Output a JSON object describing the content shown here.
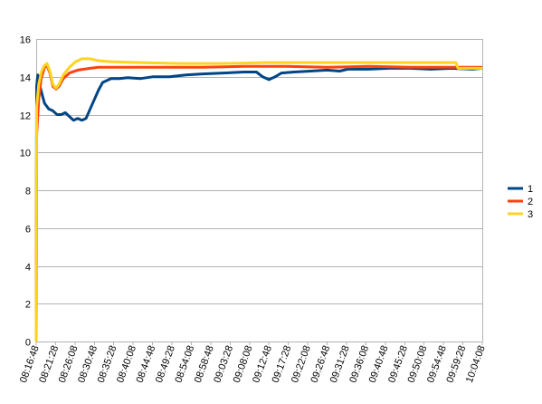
{
  "chart_data": {
    "type": "line",
    "title": "",
    "xlabel": "",
    "ylabel": "",
    "ylim": [
      0,
      16
    ],
    "yticks": [
      "0",
      "2",
      "4",
      "6",
      "8",
      "10",
      "12",
      "14",
      "16"
    ],
    "grid": true,
    "legend_position": "right",
    "x_tick_labels": [
      "08:16:48",
      "08:21:28",
      "08:26:08",
      "08:30:48",
      "08:35:28",
      "08:40:08",
      "08:44:48",
      "08:49:28",
      "08:54:08",
      "08:58:48",
      "09:03:28",
      "09:08:08",
      "09:12:48",
      "09:17:28",
      "09:22:08",
      "09:26:48",
      "09:31:28",
      "09:36:08",
      "09:40:48",
      "09:45:28",
      "09:50:08",
      "09:54:48",
      "09:59:28",
      "10:04:08"
    ],
    "x_range_minutes": [
      0,
      107.33
    ],
    "series": [
      {
        "name": "1",
        "color": "#004586",
        "points": [
          [
            0,
            0
          ],
          [
            0.1,
            13.5
          ],
          [
            0.4,
            14.1
          ],
          [
            0.8,
            13.6
          ],
          [
            1.5,
            13.0
          ],
          [
            2.0,
            12.6
          ],
          [
            3.0,
            12.3
          ],
          [
            4.0,
            12.2
          ],
          [
            5.0,
            12.0
          ],
          [
            6.0,
            12.0
          ],
          [
            7.0,
            12.1
          ],
          [
            8.0,
            11.9
          ],
          [
            9.0,
            11.7
          ],
          [
            10.0,
            11.8
          ],
          [
            11.0,
            11.7
          ],
          [
            12.0,
            11.8
          ],
          [
            13.0,
            12.3
          ],
          [
            14.0,
            12.8
          ],
          [
            15.0,
            13.3
          ],
          [
            16.0,
            13.7
          ],
          [
            17.0,
            13.8
          ],
          [
            18.0,
            13.9
          ],
          [
            20.0,
            13.9
          ],
          [
            22.0,
            13.95
          ],
          [
            25.0,
            13.9
          ],
          [
            28.0,
            14.0
          ],
          [
            32.0,
            14.0
          ],
          [
            36.0,
            14.1
          ],
          [
            40.0,
            14.15
          ],
          [
            45.0,
            14.2
          ],
          [
            50.0,
            14.25
          ],
          [
            53.0,
            14.25
          ],
          [
            54.5,
            14.0
          ],
          [
            56.0,
            13.85
          ],
          [
            57.5,
            14.0
          ],
          [
            59.0,
            14.2
          ],
          [
            62.0,
            14.25
          ],
          [
            66.0,
            14.3
          ],
          [
            70.0,
            14.35
          ],
          [
            73.0,
            14.3
          ],
          [
            75.0,
            14.4
          ],
          [
            80.0,
            14.4
          ],
          [
            85.0,
            14.45
          ],
          [
            90.0,
            14.45
          ],
          [
            95.0,
            14.4
          ],
          [
            100.0,
            14.45
          ],
          [
            105.0,
            14.4
          ],
          [
            107.33,
            14.45
          ]
        ]
      },
      {
        "name": "2",
        "color": "#ff420e",
        "points": [
          [
            0,
            0
          ],
          [
            0.1,
            10.9
          ],
          [
            0.6,
            12.8
          ],
          [
            1.2,
            13.9
          ],
          [
            2.0,
            14.5
          ],
          [
            2.6,
            14.6
          ],
          [
            3.3,
            14.2
          ],
          [
            4.0,
            13.5
          ],
          [
            4.8,
            13.35
          ],
          [
            5.5,
            13.5
          ],
          [
            6.5,
            13.9
          ],
          [
            8.0,
            14.2
          ],
          [
            10.0,
            14.35
          ],
          [
            13.0,
            14.45
          ],
          [
            15.0,
            14.5
          ],
          [
            20.0,
            14.5
          ],
          [
            30.0,
            14.5
          ],
          [
            40.0,
            14.5
          ],
          [
            50.0,
            14.55
          ],
          [
            60.0,
            14.55
          ],
          [
            70.0,
            14.5
          ],
          [
            80.0,
            14.55
          ],
          [
            90.0,
            14.5
          ],
          [
            100.0,
            14.5
          ],
          [
            107.33,
            14.5
          ]
        ]
      },
      {
        "name": "3",
        "color": "#ffd320",
        "points": [
          [
            0,
            0
          ],
          [
            0.1,
            12.4
          ],
          [
            0.6,
            13.6
          ],
          [
            1.3,
            14.3
          ],
          [
            2.0,
            14.6
          ],
          [
            2.6,
            14.7
          ],
          [
            3.3,
            14.3
          ],
          [
            4.0,
            13.6
          ],
          [
            4.8,
            13.4
          ],
          [
            5.5,
            13.6
          ],
          [
            6.5,
            14.1
          ],
          [
            8.0,
            14.5
          ],
          [
            9.5,
            14.8
          ],
          [
            11.0,
            14.95
          ],
          [
            13.0,
            14.95
          ],
          [
            15.0,
            14.85
          ],
          [
            18.0,
            14.8
          ],
          [
            25.0,
            14.75
          ],
          [
            35.0,
            14.7
          ],
          [
            45.0,
            14.7
          ],
          [
            55.0,
            14.75
          ],
          [
            65.0,
            14.75
          ],
          [
            75.0,
            14.75
          ],
          [
            85.0,
            14.75
          ],
          [
            95.0,
            14.75
          ],
          [
            101.0,
            14.75
          ],
          [
            101.5,
            14.45
          ],
          [
            107.33,
            14.45
          ]
        ]
      }
    ]
  }
}
